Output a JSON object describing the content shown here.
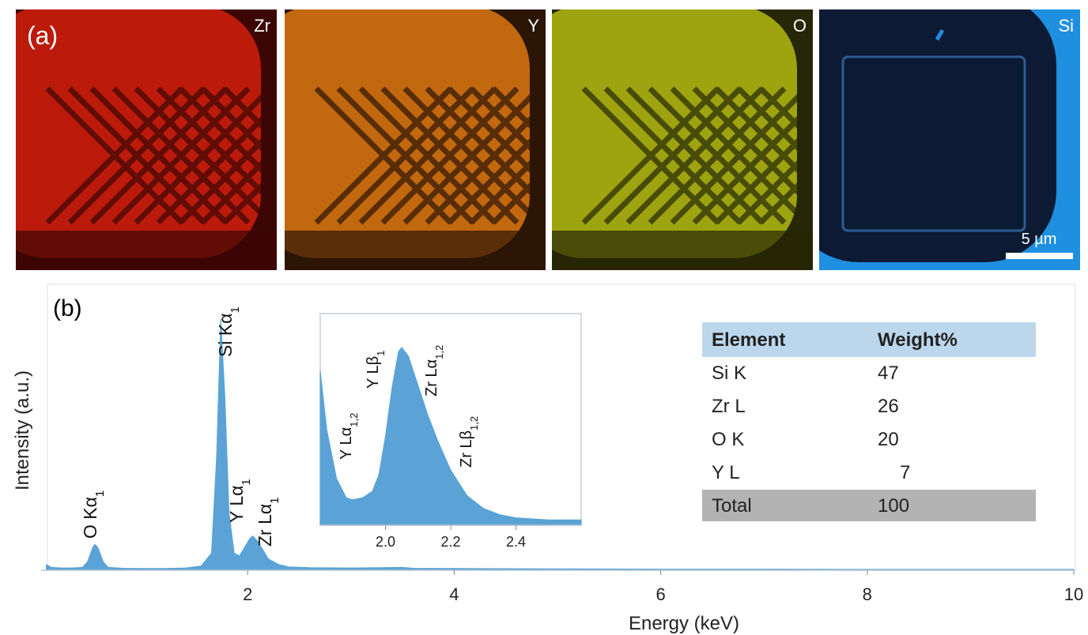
{
  "figure": {
    "panel_a": {
      "label": "(a)",
      "maps": [
        {
          "element": "Zr",
          "color": "#d8200f",
          "background": "#3c0604"
        },
        {
          "element": "Y",
          "color": "#e37b12",
          "background": "#2c1505"
        },
        {
          "element": "O",
          "color": "#b9c012",
          "background": "#262706"
        },
        {
          "element": "Si",
          "color": "#0c1a33",
          "background": "#1f8fe0"
        }
      ],
      "scale_bar": "5 µm"
    },
    "panel_b": {
      "label": "(b)"
    }
  },
  "chart_data": [
    {
      "type": "area",
      "x_label": "Energy (keV)",
      "y_label": "Intensity (a.u.)",
      "xlim": [
        0,
        10
      ],
      "xticks": [
        2,
        4,
        6,
        8,
        10
      ],
      "ylim": [
        0,
        100
      ],
      "series": [
        {
          "color": "#5ba3d6",
          "x": [
            0.05,
            0.1,
            0.2,
            0.3,
            0.4,
            0.45,
            0.5,
            0.52,
            0.55,
            0.6,
            0.65,
            0.8,
            1.0,
            1.2,
            1.4,
            1.55,
            1.65,
            1.7,
            1.74,
            1.78,
            1.82,
            1.87,
            1.92,
            1.97,
            2.02,
            2.05,
            2.1,
            2.15,
            2.2,
            2.3,
            2.4,
            2.6,
            3.0,
            3.5,
            3.6,
            4,
            5,
            6,
            7,
            8,
            9,
            10
          ],
          "values": [
            2,
            1,
            0.8,
            0.8,
            1,
            3,
            8,
            9,
            8,
            3,
            1,
            0.7,
            0.6,
            0.6,
            0.8,
            1.5,
            6,
            40,
            88,
            60,
            20,
            6,
            5,
            8,
            11,
            12,
            10,
            7,
            4,
            2,
            1.2,
            0.9,
            0.8,
            1,
            0.7,
            0.6,
            0.5,
            0.4,
            0.4,
            0.3,
            0.3,
            0.3
          ]
        }
      ],
      "annotations": [
        {
          "text": "O Kα",
          "sub": "1"
        },
        {
          "text": "Si Kα",
          "sub": "1"
        },
        {
          "text": "Y Lα",
          "sub": "1"
        },
        {
          "text": "Zr Lα",
          "sub": "1"
        }
      ]
    },
    {
      "type": "area",
      "xlim": [
        1.8,
        2.6
      ],
      "xticks": [
        {
          "value": 2,
          "label": "2.0"
        },
        2.2,
        2.4
      ],
      "ylim": [
        0,
        100
      ],
      "series": [
        {
          "color": "#5ba3d6",
          "x": [
            1.8,
            1.82,
            1.85,
            1.88,
            1.9,
            1.93,
            1.96,
            1.98,
            2.0,
            2.02,
            2.04,
            2.05,
            2.07,
            2.1,
            2.13,
            2.16,
            2.2,
            2.25,
            2.3,
            2.35,
            2.4,
            2.5,
            2.6
          ],
          "values": [
            73,
            45,
            22,
            13,
            12,
            13,
            16,
            24,
            42,
            65,
            82,
            84,
            80,
            66,
            52,
            40,
            26,
            14,
            8,
            5,
            3.5,
            2.5,
            2.5
          ]
        }
      ],
      "annotations": [
        {
          "text": "Y Lα",
          "sub": "1,2"
        },
        {
          "text": "Y Lβ",
          "sub": "1"
        },
        {
          "text": "Zr Lα",
          "sub": "1,2"
        },
        {
          "text": "Zr Lβ",
          "sub": "1,2"
        }
      ]
    }
  ],
  "table": {
    "header": [
      "Element",
      "Weight%"
    ],
    "rows": [
      [
        "Si K",
        "47"
      ],
      [
        "Zr L",
        "26"
      ],
      [
        "O K",
        "20"
      ],
      [
        "Y L",
        "7"
      ]
    ],
    "total": [
      "Total",
      "100"
    ]
  }
}
